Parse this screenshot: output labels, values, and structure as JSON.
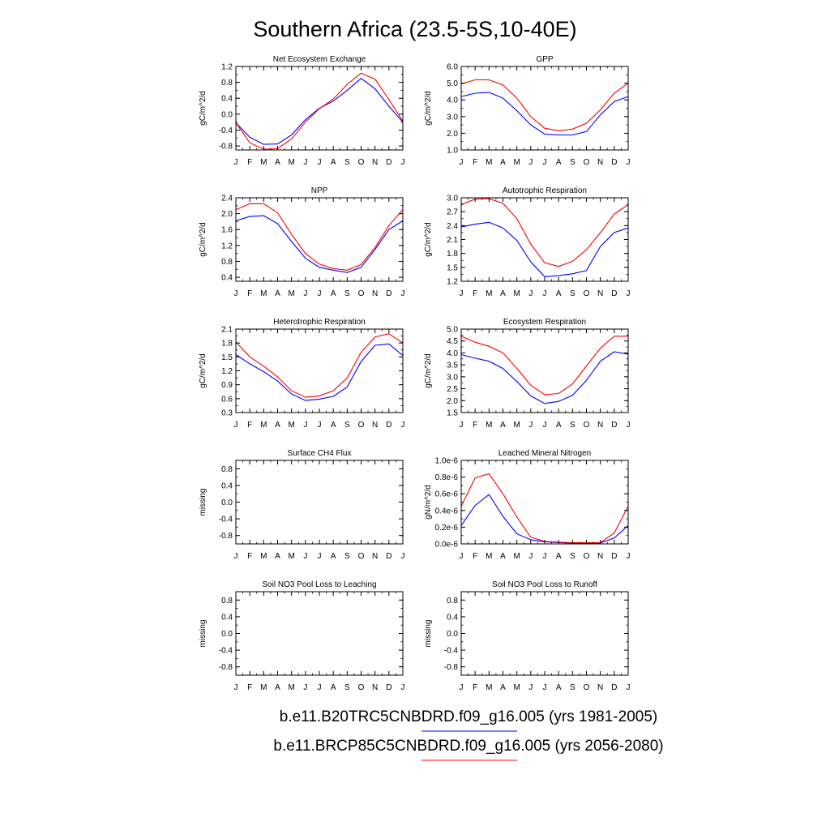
{
  "figure": {
    "title": "Southern Africa (23.5-5S,10-40E)",
    "legend": [
      {
        "label": "b.e11.B20TRC5CNBDRD.f09_g16.005 (yrs 1981-2005)",
        "color": "#0000ff"
      },
      {
        "label": "b.e11.BRCP85C5CNBDRD.f09_g16.005 (yrs 2056-2080)",
        "color": "#ff0000"
      }
    ]
  },
  "chart_data": [
    {
      "type": "line",
      "title": "Net Ecosystem Exchange",
      "xlabel": "",
      "ylabel": "gC/m^2/d",
      "categories": [
        "J",
        "F",
        "M",
        "A",
        "M",
        "J",
        "J",
        "A",
        "S",
        "O",
        "N",
        "D",
        "J"
      ],
      "ylim": [
        -0.9,
        1.2
      ],
      "yticks": [
        -0.8,
        -0.4,
        0.0,
        0.4,
        0.8,
        1.2
      ],
      "ytick_labels": [
        "-0.8",
        "-0.4",
        "0.0",
        "0.4",
        "0.8",
        "1.2"
      ],
      "series": [
        {
          "name": "b.e11.B20TRC5CNBDRD.f09_g16.005 (yrs 1981-2005)",
          "color": "#0000ff",
          "values": [
            -0.22,
            -0.58,
            -0.76,
            -0.75,
            -0.52,
            -0.14,
            0.15,
            0.33,
            0.6,
            0.9,
            0.64,
            0.2,
            -0.2
          ]
        },
        {
          "name": "b.e11.BRCP85C5CNBDRD.f09_g16.005 (yrs 2056-2080)",
          "color": "#ff0000",
          "values": [
            -0.22,
            -0.72,
            -0.88,
            -0.87,
            -0.62,
            -0.2,
            0.14,
            0.38,
            0.75,
            1.03,
            0.88,
            0.37,
            -0.18
          ]
        }
      ]
    },
    {
      "type": "line",
      "title": "GPP",
      "xlabel": "",
      "ylabel": "gC/m^2/d",
      "categories": [
        "J",
        "F",
        "M",
        "A",
        "M",
        "J",
        "J",
        "A",
        "S",
        "O",
        "N",
        "D",
        "J"
      ],
      "ylim": [
        1.0,
        6.0
      ],
      "yticks": [
        1.0,
        2.0,
        3.0,
        4.0,
        5.0,
        6.0
      ],
      "ytick_labels": [
        "1.0",
        "2.0",
        "3.0",
        "4.0",
        "5.0",
        "6.0"
      ],
      "series": [
        {
          "name": "b.e11.B20TRC5CNBDRD.f09_g16.005 (yrs 1981-2005)",
          "color": "#0000ff",
          "values": [
            4.2,
            4.4,
            4.45,
            4.1,
            3.35,
            2.5,
            1.95,
            1.9,
            1.9,
            2.1,
            3.1,
            3.9,
            4.2
          ]
        },
        {
          "name": "b.e11.BRCP85C5CNBDRD.f09_g16.005 (yrs 2056-2080)",
          "color": "#ff0000",
          "values": [
            4.95,
            5.2,
            5.2,
            4.9,
            4.1,
            3.0,
            2.3,
            2.15,
            2.25,
            2.6,
            3.4,
            4.4,
            5.0
          ]
        }
      ]
    },
    {
      "type": "line",
      "title": "NPP",
      "xlabel": "",
      "ylabel": "gC/m^2/d",
      "categories": [
        "J",
        "F",
        "M",
        "A",
        "M",
        "J",
        "J",
        "A",
        "S",
        "O",
        "N",
        "D",
        "J"
      ],
      "ylim": [
        0.3,
        2.4
      ],
      "yticks": [
        0.4,
        0.8,
        1.2,
        1.6,
        2.0,
        2.4
      ],
      "ytick_labels": [
        "0.4",
        "0.8",
        "1.2",
        "1.6",
        "2.0",
        "2.4"
      ],
      "series": [
        {
          "name": "b.e11.B20TRC5CNBDRD.f09_g16.005 (yrs 1981-2005)",
          "color": "#0000ff",
          "values": [
            1.82,
            1.93,
            1.95,
            1.75,
            1.3,
            0.88,
            0.65,
            0.58,
            0.52,
            0.65,
            1.1,
            1.6,
            1.82
          ]
        },
        {
          "name": "b.e11.BRCP85C5CNBDRD.f09_g16.005 (yrs 2056-2080)",
          "color": "#ff0000",
          "values": [
            2.1,
            2.25,
            2.25,
            2.02,
            1.48,
            1.0,
            0.73,
            0.62,
            0.58,
            0.72,
            1.15,
            1.7,
            2.1
          ]
        }
      ]
    },
    {
      "type": "line",
      "title": "Autotrophic Respiration",
      "xlabel": "",
      "ylabel": "gC/m^2/d",
      "categories": [
        "J",
        "F",
        "M",
        "A",
        "M",
        "J",
        "J",
        "A",
        "S",
        "O",
        "N",
        "D",
        "J"
      ],
      "ylim": [
        1.2,
        3.0
      ],
      "yticks": [
        1.2,
        1.5,
        1.8,
        2.1,
        2.4,
        2.7,
        3.0
      ],
      "ytick_labels": [
        "1.2",
        "1.5",
        "1.8",
        "2.1",
        "2.4",
        "2.7",
        "3.0"
      ],
      "series": [
        {
          "name": "b.e11.B20TRC5CNBDRD.f09_g16.005 (yrs 1981-2005)",
          "color": "#0000ff",
          "values": [
            2.37,
            2.43,
            2.47,
            2.35,
            2.08,
            1.62,
            1.3,
            1.32,
            1.36,
            1.43,
            1.95,
            2.25,
            2.35
          ]
        },
        {
          "name": "b.e11.BRCP85C5CNBDRD.f09_g16.005 (yrs 2056-2080)",
          "color": "#ff0000",
          "values": [
            2.86,
            2.97,
            2.98,
            2.88,
            2.55,
            2.0,
            1.6,
            1.52,
            1.63,
            1.88,
            2.25,
            2.65,
            2.85
          ]
        }
      ]
    },
    {
      "type": "line",
      "title": "Heterotrophic Respiration",
      "xlabel": "",
      "ylabel": "gC/m^2/d",
      "categories": [
        "J",
        "F",
        "M",
        "A",
        "M",
        "J",
        "J",
        "A",
        "S",
        "O",
        "N",
        "D",
        "J"
      ],
      "ylim": [
        0.3,
        2.1
      ],
      "yticks": [
        0.3,
        0.6,
        0.9,
        1.2,
        1.5,
        1.8,
        2.1
      ],
      "ytick_labels": [
        "0.3",
        "0.6",
        "0.9",
        "1.2",
        "1.5",
        "1.8",
        "2.1"
      ],
      "series": [
        {
          "name": "b.e11.B20TRC5CNBDRD.f09_g16.005 (yrs 1981-2005)",
          "color": "#0000ff",
          "values": [
            1.55,
            1.35,
            1.18,
            0.98,
            0.7,
            0.56,
            0.59,
            0.65,
            0.85,
            1.4,
            1.75,
            1.78,
            1.53
          ]
        },
        {
          "name": "b.e11.BRCP85C5CNBDRD.f09_g16.005 (yrs 2056-2080)",
          "color": "#ff0000",
          "values": [
            1.82,
            1.5,
            1.3,
            1.07,
            0.77,
            0.63,
            0.66,
            0.77,
            1.05,
            1.6,
            1.93,
            2.0,
            1.8
          ]
        }
      ]
    },
    {
      "type": "line",
      "title": "Ecosystem Respiration",
      "xlabel": "",
      "ylabel": "gC/m^2/d",
      "categories": [
        "J",
        "F",
        "M",
        "A",
        "M",
        "J",
        "J",
        "A",
        "S",
        "O",
        "N",
        "D",
        "J"
      ],
      "ylim": [
        1.5,
        5.0
      ],
      "yticks": [
        1.5,
        2.0,
        2.5,
        3.0,
        3.5,
        4.0,
        4.5,
        5.0
      ],
      "ytick_labels": [
        "1.5",
        "2.0",
        "2.5",
        "3.0",
        "3.5",
        "4.0",
        "4.5",
        "5.0"
      ],
      "series": [
        {
          "name": "b.e11.B20TRC5CNBDRD.f09_g16.005 (yrs 1981-2005)",
          "color": "#0000ff",
          "values": [
            3.93,
            3.78,
            3.65,
            3.35,
            2.8,
            2.2,
            1.88,
            1.97,
            2.22,
            2.85,
            3.65,
            4.05,
            3.95
          ]
        },
        {
          "name": "b.e11.BRCP85C5CNBDRD.f09_g16.005 (yrs 2056-2080)",
          "color": "#ff0000",
          "values": [
            4.7,
            4.45,
            4.28,
            4.0,
            3.35,
            2.65,
            2.25,
            2.3,
            2.7,
            3.45,
            4.2,
            4.7,
            4.7
          ]
        }
      ]
    },
    {
      "type": "line",
      "title": "Surface CH4 Flux",
      "xlabel": "",
      "ylabel": "missing",
      "categories": [
        "J",
        "F",
        "M",
        "A",
        "M",
        "J",
        "J",
        "A",
        "S",
        "O",
        "N",
        "D",
        "J"
      ],
      "ylim": [
        -1.0,
        1.0
      ],
      "yticks": [
        -0.8,
        -0.4,
        0.0,
        0.4,
        0.8
      ],
      "ytick_labels": [
        "-0.8",
        "-0.4",
        "0.0",
        "0.4",
        "0.8"
      ],
      "series": []
    },
    {
      "type": "line",
      "title": "Leached Mineral Nitrogen",
      "xlabel": "",
      "ylabel": "gN/m^2/d",
      "categories": [
        "J",
        "F",
        "M",
        "A",
        "M",
        "J",
        "J",
        "A",
        "S",
        "O",
        "N",
        "D",
        "J"
      ],
      "ylim": [
        0.0,
        1e-06
      ],
      "yticks": [
        0.0,
        2e-07,
        4e-07,
        6e-07,
        8e-07,
        1e-06
      ],
      "ytick_labels": [
        "0.0e-6",
        "0.2e-6",
        "0.4e-6",
        "0.6e-6",
        "0.8e-6",
        "1.0e-6"
      ],
      "series": [
        {
          "name": "b.e11.B20TRC5CNBDRD.f09_g16.005 (yrs 1981-2005)",
          "color": "#0000ff",
          "values": [
            2.2e-07,
            4.6e-07,
            5.9e-07,
            3.3e-07,
            1.2e-07,
            5e-08,
            2.5e-08,
            1.5e-08,
            1e-08,
            1e-08,
            1e-08,
            7e-08,
            2.2e-07
          ]
        },
        {
          "name": "b.e11.BRCP85C5CNBDRD.f09_g16.005 (yrs 2056-2080)",
          "color": "#ff0000",
          "values": [
            4.5e-07,
            7.9e-07,
            8.4e-07,
            6e-07,
            3.2e-07,
            8e-08,
            3e-08,
            2e-08,
            1.5e-08,
            1.5e-08,
            1.5e-08,
            1.3e-07,
            4.5e-07
          ]
        }
      ]
    },
    {
      "type": "line",
      "title": "Soil NO3 Pool Loss to Leaching",
      "xlabel": "",
      "ylabel": "missing",
      "categories": [
        "J",
        "F",
        "M",
        "A",
        "M",
        "J",
        "J",
        "A",
        "S",
        "O",
        "N",
        "D",
        "J"
      ],
      "ylim": [
        -1.0,
        1.0
      ],
      "yticks": [
        -0.8,
        -0.4,
        0.0,
        0.4,
        0.8
      ],
      "ytick_labels": [
        "-0.8",
        "-0.4",
        "0.0",
        "0.4",
        "0.8"
      ],
      "series": []
    },
    {
      "type": "line",
      "title": "Soil NO3 Pool Loss to Runoff",
      "xlabel": "",
      "ylabel": "missing",
      "categories": [
        "J",
        "F",
        "M",
        "A",
        "M",
        "J",
        "J",
        "A",
        "S",
        "O",
        "N",
        "D",
        "J"
      ],
      "ylim": [
        -1.0,
        1.0
      ],
      "yticks": [
        -0.8,
        -0.4,
        0.0,
        0.4,
        0.8
      ],
      "ytick_labels": [
        "-0.8",
        "-0.4",
        "0.0",
        "0.4",
        "0.8"
      ],
      "series": []
    }
  ]
}
